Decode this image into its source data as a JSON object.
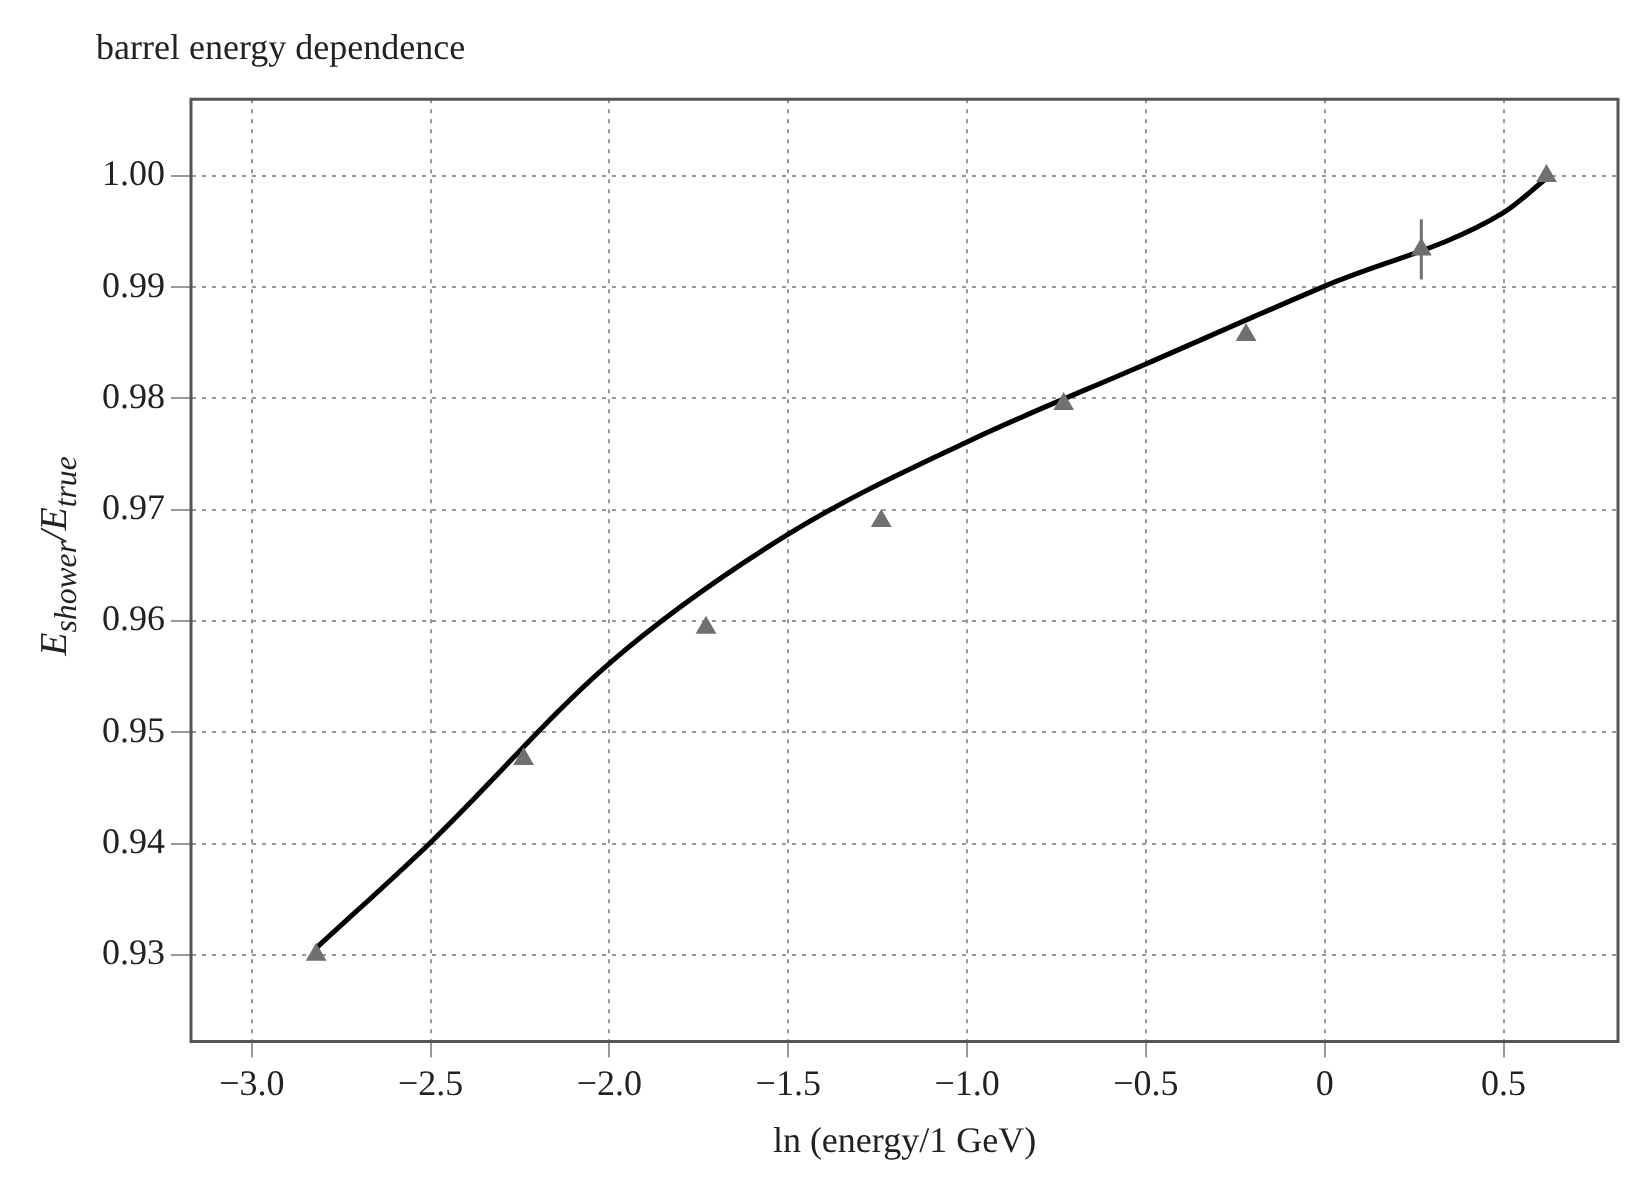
{
  "chart_data": {
    "type": "scatter",
    "title": "barrel energy dependence",
    "xlabel": "ln (energy/1 GeV)",
    "ylabel": "E$_{shower}$/E$_{true}$",
    "series": [
      {
        "color": "#707070",
        "marker": "triangle",
        "x": [
          -2.82,
          -2.24,
          -1.73,
          -1.24,
          -0.73,
          -0.22,
          0.27,
          0.62
        ],
        "values": [
          0.93,
          0.9476,
          0.9594,
          0.969,
          0.9795,
          0.9857,
          0.9934,
          1.0
        ],
        "errors": [
          null,
          null,
          null,
          null,
          null,
          null,
          0.0027,
          null
        ]
      },
      {
        "type": "line",
        "color": "#000000",
        "marker": "none",
        "line_style": "solid",
        "x": [
          -2.82,
          -2.5,
          -2.0,
          -1.5,
          -1.0,
          -0.5,
          0,
          0.5,
          0.62
        ],
        "values": [
          0.9306,
          0.9401,
          0.9562,
          0.9678,
          0.9761,
          0.9831,
          0.9901,
          0.9967,
          0.9998
        ]
      }
    ],
    "xlim": [
      -3.17,
      0.82
    ],
    "ylim": [
      0.9222,
      1.0069
    ],
    "xticks": [
      {
        "value": -3,
        "label": "−3.0"
      },
      {
        "value": -2.5,
        "label": "−2.5"
      },
      {
        "value": -2,
        "label": "−2.0"
      },
      {
        "value": -1.5,
        "label": "−1.5"
      },
      {
        "value": -1,
        "label": "−1.0"
      },
      {
        "value": -0.5,
        "label": "−0.5"
      },
      0,
      0.5
    ],
    "yticks": [
      0.93,
      0.94,
      0.95,
      0.96,
      0.97,
      0.98,
      0.99,
      {
        "value": 1,
        "label": "1.00"
      }
    ],
    "grid": true,
    "legend": false
  }
}
